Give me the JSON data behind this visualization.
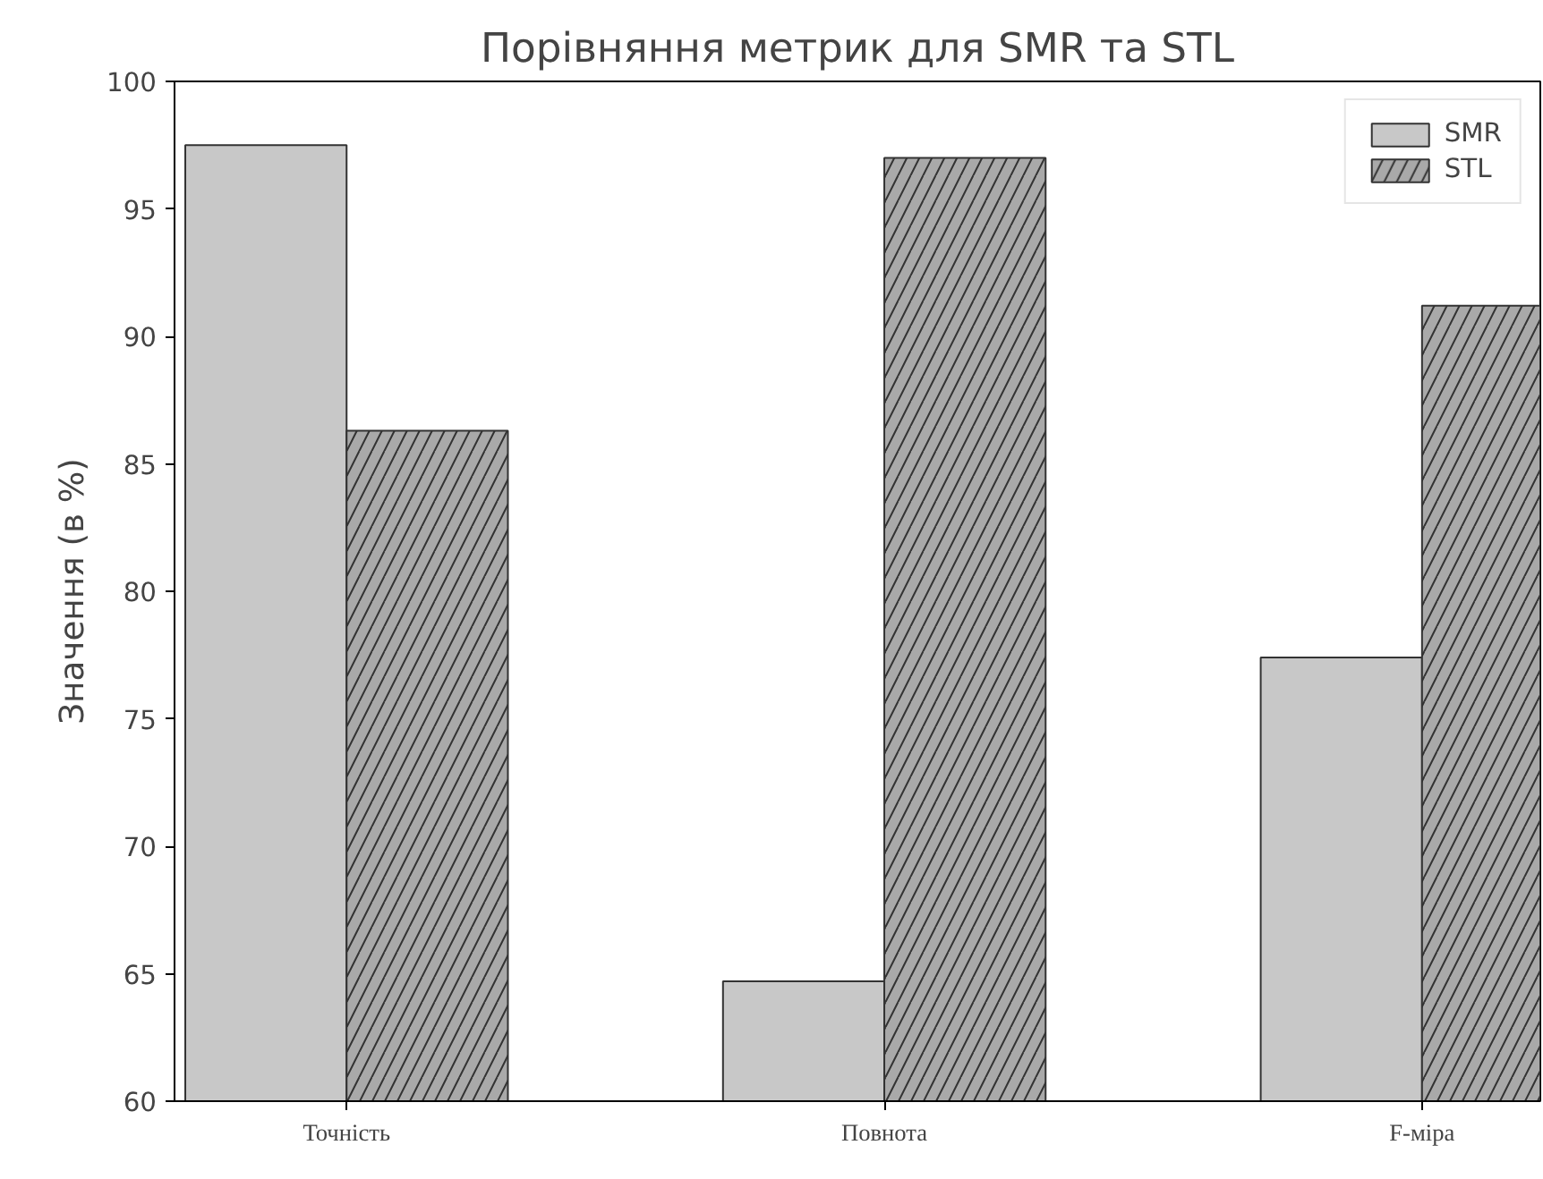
{
  "chart_data": {
    "type": "bar",
    "title": "Порівняння метрик для SMR та STL",
    "ylabel": "Значення (в %)",
    "categories": [
      "Точність",
      "Повнота",
      "F-міра"
    ],
    "series": [
      {
        "name": "SMR",
        "color": "#c8c8c8",
        "values": [
          97.5,
          64.7,
          77.4
        ]
      },
      {
        "name": "STL",
        "color": "#a9a9a9",
        "values": [
          86.3,
          97.0,
          91.2
        ]
      }
    ],
    "ylim": [
      60,
      100
    ],
    "yticks": [
      60,
      65,
      70,
      75,
      80,
      85,
      90,
      95,
      100
    ],
    "grid": false,
    "legend": "top right"
  }
}
